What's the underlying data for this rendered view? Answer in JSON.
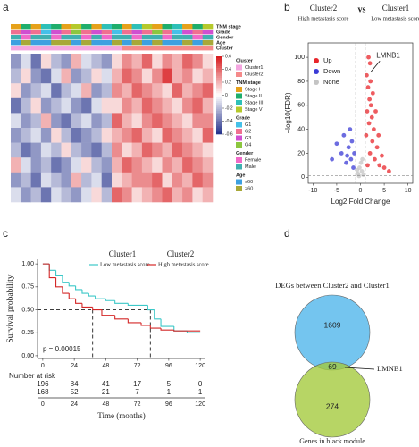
{
  "panel_labels": [
    "a",
    "b",
    "c",
    "d"
  ],
  "chart_data": [
    {
      "type": "heatmap",
      "zlim": [
        -0.6,
        0.6
      ],
      "colors": {
        "low": "#23308a",
        "mid": "#ffffff",
        "high": "#d7191c"
      },
      "colorbar_ticks": [
        0.6,
        0.4,
        0.2,
        0,
        -0.2,
        -0.4,
        -0.6
      ],
      "rows": [
        [
          -0.3,
          -0.1,
          -0.4,
          0.1,
          -0.2,
          -0.3,
          0.2,
          -0.1,
          -0.2,
          -0.3,
          0.1,
          0.3,
          0.2,
          0.4,
          0.1,
          0.3,
          0.2,
          0.4,
          0.3,
          0.1
        ],
        [
          -0.2,
          0.1,
          -0.3,
          -0.4,
          -0.1,
          0.2,
          -0.3,
          -0.2,
          0.1,
          -0.1,
          0.2,
          0.4,
          0.3,
          0.1,
          0.3,
          0.5,
          0.2,
          0.3,
          0.1,
          0.2
        ],
        [
          0.1,
          -0.3,
          -0.2,
          -0.1,
          -0.4,
          -0.2,
          -0.1,
          0.2,
          -0.3,
          -0.2,
          0.3,
          0.2,
          0.4,
          0.3,
          0.2,
          0.1,
          0.4,
          0.2,
          0.3,
          0.4
        ],
        [
          -0.4,
          -0.2,
          0.1,
          -0.3,
          -0.2,
          -0.1,
          -0.3,
          -0.4,
          -0.1,
          0.1,
          0.1,
          0.3,
          0.2,
          0.4,
          0.3,
          0.2,
          0.1,
          0.3,
          0.4,
          0.2
        ],
        [
          -0.1,
          -0.3,
          -0.2,
          0.2,
          -0.3,
          -0.4,
          -0.2,
          -0.1,
          -0.3,
          -0.2,
          0.4,
          0.2,
          0.1,
          0.3,
          0.4,
          0.3,
          0.2,
          0.1,
          0.3,
          0.3
        ],
        [
          -0.3,
          -0.2,
          -0.1,
          -0.3,
          0.1,
          -0.2,
          -0.4,
          -0.3,
          -0.2,
          0.1,
          0.2,
          0.3,
          0.4,
          0.2,
          0.1,
          0.4,
          0.3,
          0.2,
          0.1,
          0.4
        ],
        [
          -0.2,
          -0.4,
          -0.3,
          -0.1,
          -0.2,
          0.1,
          -0.2,
          -0.3,
          -0.4,
          -0.2,
          0.3,
          0.1,
          0.2,
          0.4,
          0.3,
          0.2,
          0.4,
          0.3,
          0.2,
          0.1
        ],
        [
          0.2,
          -0.1,
          -0.3,
          -0.2,
          -0.4,
          -0.3,
          -0.1,
          0.1,
          -0.2,
          -0.3,
          0.2,
          0.4,
          0.3,
          0.2,
          0.1,
          0.3,
          0.2,
          0.4,
          0.3,
          0.2
        ],
        [
          -0.3,
          -0.2,
          -0.4,
          -0.1,
          -0.2,
          -0.3,
          0.2,
          -0.2,
          -0.1,
          -0.4,
          0.1,
          0.2,
          0.3,
          0.3,
          0.4,
          0.1,
          0.3,
          0.2,
          0.4,
          0.3
        ],
        [
          -0.1,
          -0.3,
          -0.2,
          -0.4,
          -0.1,
          -0.2,
          -0.3,
          -0.1,
          0.1,
          -0.2,
          0.4,
          0.3,
          0.1,
          0.2,
          0.3,
          0.4,
          0.2,
          0.3,
          0.1,
          0.2
        ]
      ],
      "annotations": [
        {
          "name": "TNM stage",
          "levels": [
            {
              "name": "Stage I",
              "color": "#e6a11a"
            },
            {
              "name": "Stage II",
              "color": "#1fae6c"
            },
            {
              "name": "Stage III",
              "color": "#2ec0b8"
            },
            {
              "name": "Stage V",
              "color": "#b5c92c"
            }
          ],
          "values": [
            "Stage I",
            "Stage II",
            "Stage I",
            "Stage III",
            "Stage II",
            "Stage I",
            "Stage V",
            "Stage II",
            "Stage I",
            "Stage III",
            "Stage II",
            "Stage I",
            "Stage III",
            "Stage V",
            "Stage I",
            "Stage II",
            "Stage III",
            "Stage I",
            "Stage II",
            "Stage V"
          ]
        },
        {
          "name": "Grade",
          "levels": [
            {
              "name": "G1",
              "color": "#45c0e8"
            },
            {
              "name": "G2",
              "color": "#f07090"
            },
            {
              "name": "G3",
              "color": "#d04fd0"
            },
            {
              "name": "G4",
              "color": "#8cc63f"
            }
          ],
          "values": [
            "G2",
            "G3",
            "G2",
            "G1",
            "G3",
            "G2",
            "G4",
            "G2",
            "G3",
            "G2",
            "G1",
            "G2",
            "G3",
            "G2",
            "G4",
            "G2",
            "G1",
            "G3",
            "G2",
            "G3"
          ]
        },
        {
          "name": "Gender",
          "levels": [
            {
              "name": "Female",
              "color": "#f06ac8"
            },
            {
              "name": "Male",
              "color": "#40b0b0"
            }
          ],
          "values": [
            "Male",
            "Female",
            "Male",
            "Male",
            "Female",
            "Male",
            "Male",
            "Female",
            "Male",
            "Female",
            "Male",
            "Male",
            "Female",
            "Male",
            "Male",
            "Female",
            "Male",
            "Male",
            "Female",
            "Male"
          ]
        },
        {
          "name": "Age",
          "levels": [
            {
              "name": "≤60",
              "color": "#3da0e0"
            },
            {
              "name": ">60",
              "color": "#a8a838"
            }
          ],
          "values": [
            "≤60",
            ">60",
            "≤60",
            "≤60",
            ">60",
            ">60",
            "≤60",
            ">60",
            "≤60",
            "≤60",
            ">60",
            "≤60",
            ">60",
            "≤60",
            ">60",
            "≤60",
            "≤60",
            ">60",
            "≤60",
            ">60"
          ]
        },
        {
          "name": "Cluster",
          "levels": [
            {
              "name": "Cluster1",
              "color": "#f4a6e0"
            },
            {
              "name": "Cluster2",
              "color": "#f58a8a"
            }
          ],
          "values": [
            "Cluster1",
            "Cluster1",
            "Cluster1",
            "Cluster1",
            "Cluster1",
            "Cluster1",
            "Cluster1",
            "Cluster1",
            "Cluster1",
            "Cluster1",
            "Cluster1",
            "Cluster2",
            "Cluster2",
            "Cluster2",
            "Cluster2",
            "Cluster2",
            "Cluster2",
            "Cluster2",
            "Cluster2",
            "Cluster2"
          ]
        }
      ]
    },
    {
      "type": "scatter",
      "header": {
        "left": {
          "title": "Cluster2",
          "subtitle": "High metastasis score"
        },
        "middle": "vs",
        "right": {
          "title": "Cluster1",
          "subtitle": "Low metastasis score"
        }
      },
      "x_label": "Log2 Fold Change",
      "y_label": "−log10(FDR)",
      "xlim": [
        -11,
        11
      ],
      "xticks": [
        -10,
        -5,
        0,
        5,
        10
      ],
      "ylim": [
        -5,
        112
      ],
      "yticks": [
        0,
        20,
        40,
        60,
        80,
        100
      ],
      "reference_lines": {
        "x": [
          -1,
          1
        ],
        "y": [
          1.3
        ]
      },
      "series": [
        {
          "name": "Up",
          "color": "#e8262b",
          "x": [
            1.5,
            2,
            2.5,
            1.8,
            3,
            2.2,
            1.6,
            2.8,
            3.5,
            4,
            1.3,
            2,
            1.7,
            2.4,
            5,
            1.2,
            3.2,
            1.9,
            6,
            2.6,
            1.4,
            4.5,
            3.8,
            2.1
          ],
          "values": [
            10,
            20,
            30,
            45,
            15,
            60,
            75,
            40,
            25,
            10,
            85,
            95,
            100,
            50,
            8,
            35,
            55,
            65,
            5,
            70,
            55,
            18,
            35,
            80
          ]
        },
        {
          "name": "Down",
          "color": "#3b3bd6",
          "x": [
            -1.5,
            -2,
            -2.5,
            -3,
            -1.8,
            -4,
            -3.5,
            -2.2,
            -5,
            -6,
            -1.3,
            -2.8
          ],
          "values": [
            8,
            15,
            25,
            12,
            30,
            20,
            35,
            40,
            28,
            15,
            20,
            18
          ]
        },
        {
          "name": "None",
          "color": "#c4c4c4",
          "x": [
            -0.5,
            0.3,
            -0.2,
            0.6,
            0.1,
            -0.7,
            0.4,
            -0.3
          ],
          "values": [
            3,
            5,
            8,
            2,
            12,
            6,
            15,
            1
          ]
        }
      ],
      "annotations": [
        {
          "text": "LMNB1",
          "x": 2.2,
          "y": 88
        }
      ]
    },
    {
      "type": "line",
      "step": true,
      "x_label": "Time (months)",
      "y_label": "Survival probability",
      "xlim": [
        -4,
        124
      ],
      "xticks": [
        0,
        24,
        48,
        72,
        96,
        120
      ],
      "ylim": [
        -0.03,
        1.05
      ],
      "yticks": [
        {
          "value": 0,
          "label": "0.00"
        },
        {
          "value": 0.25,
          "label": "0.25"
        },
        {
          "value": 0.5,
          "label": "0.50"
        },
        {
          "value": 0.75,
          "label": "0.75"
        },
        {
          "value": 1,
          "label": "1.00"
        }
      ],
      "series": [
        {
          "name": "Cluster1",
          "subtitle": "Low metastasis score",
          "color": "#3cc8c8",
          "x": [
            0,
            5,
            10,
            15,
            20,
            25,
            30,
            35,
            40,
            48,
            55,
            65,
            80,
            85,
            90,
            100,
            110,
            120
          ],
          "values": [
            1,
            0.93,
            0.87,
            0.8,
            0.76,
            0.72,
            0.68,
            0.65,
            0.62,
            0.6,
            0.57,
            0.55,
            0.5,
            0.4,
            0.32,
            0.27,
            0.25,
            0.25
          ]
        },
        {
          "name": "Cluster2",
          "subtitle": "High metastasis score",
          "color": "#d42828",
          "x": [
            0,
            5,
            10,
            15,
            20,
            25,
            30,
            38,
            45,
            55,
            65,
            75,
            82,
            90,
            100,
            120
          ],
          "values": [
            1,
            0.85,
            0.75,
            0.68,
            0.62,
            0.57,
            0.53,
            0.5,
            0.44,
            0.4,
            0.36,
            0.33,
            0.3,
            0.28,
            0.27,
            0.27
          ]
        }
      ],
      "median_lines": {
        "y": 0.5,
        "x": [
          38,
          82
        ]
      },
      "annotation": "p = 0.00015",
      "risk_table": {
        "title": "Number at risk",
        "rows": [
          [
            196,
            84,
            41,
            17,
            5,
            0
          ],
          [
            168,
            52,
            21,
            7,
            1,
            1
          ]
        ]
      }
    },
    {
      "type": "venn",
      "title": "DEGs between Cluster2 and Cluster1",
      "sets": [
        {
          "color": "#74c5ef"
        },
        {
          "name": "Genes in black module",
          "color": "#a3c93a"
        }
      ],
      "values": [
        1609,
        69,
        274
      ],
      "annotation": "LMNB1"
    }
  ]
}
